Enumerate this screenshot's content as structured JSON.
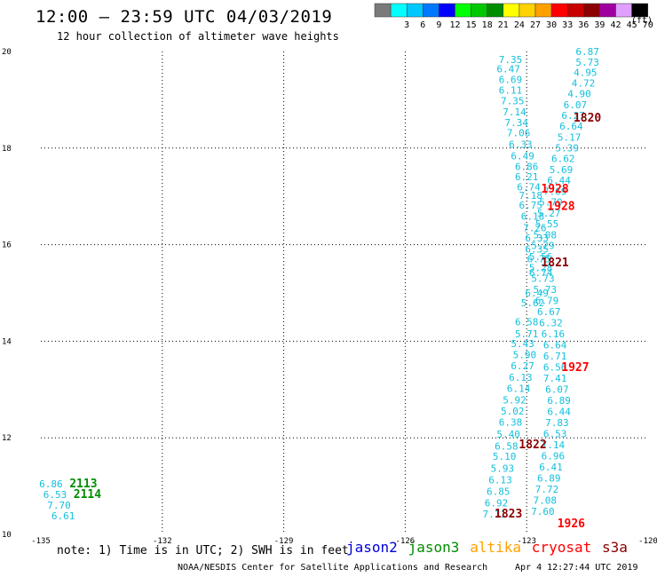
{
  "header": {
    "title": "12:00 – 23:59 UTC 04/03/2019",
    "subtitle": "12 hour collection of altimeter wave heights",
    "legend_units": "(ft)"
  },
  "legend": {
    "bins": [
      {
        "label": "",
        "color": "#7a7a7a"
      },
      {
        "label": "3",
        "color": "#00ffff"
      },
      {
        "label": "6",
        "color": "#00c8ff"
      },
      {
        "label": "9",
        "color": "#0078ff"
      },
      {
        "label": "12",
        "color": "#0000ff"
      },
      {
        "label": "15",
        "color": "#00ff00"
      },
      {
        "label": "18",
        "color": "#00c800"
      },
      {
        "label": "21",
        "color": "#008c00"
      },
      {
        "label": "24",
        "color": "#ffff00"
      },
      {
        "label": "27",
        "color": "#ffd200"
      },
      {
        "label": "30",
        "color": "#ffa000"
      },
      {
        "label": "33",
        "color": "#ff0000"
      },
      {
        "label": "36",
        "color": "#c80000"
      },
      {
        "label": "39",
        "color": "#8c0000"
      },
      {
        "label": "42",
        "color": "#a000a0"
      },
      {
        "label": "45",
        "color": "#e0a0ff"
      },
      {
        "label": "70",
        "color": "#000000"
      }
    ]
  },
  "footer": {
    "note": "note: 1) Time is in UTC; 2) SWH is in feet",
    "satellites": [
      {
        "name": "jason2",
        "color": "#0000dd"
      },
      {
        "name": "jason3",
        "color": "#008c00"
      },
      {
        "name": "altika",
        "color": "#ffa000"
      },
      {
        "name": "cryosat",
        "color": "#ff0000"
      },
      {
        "name": "s3a",
        "color": "#8c0000"
      }
    ],
    "credit": "NOAA/NESDIS Center for Satellite Applications and Research",
    "timestamp": "Apr  4 12:27:44 UTC 2019"
  },
  "chart_data": {
    "type": "scatter",
    "title": "12:00 – 23:59 UTC 04/03/2019",
    "xlim": [
      -135,
      -120
    ],
    "ylim": [
      10,
      20
    ],
    "x_ticks": [
      "-135",
      "-132",
      "-129",
      "-126",
      "-123",
      "-120"
    ],
    "y_ticks": [
      "10",
      "12",
      "14",
      "16",
      "18",
      "20"
    ],
    "grid": true,
    "series": [
      {
        "name": "cyan track",
        "color": "#14c0dc",
        "points": [
          {
            "x": -123.4,
            "y": 19.76,
            "v": "7.35"
          },
          {
            "x": -123.45,
            "y": 19.57,
            "v": "6.47"
          },
          {
            "x": -123.4,
            "y": 19.35,
            "v": "6.69"
          },
          {
            "x": -123.4,
            "y": 19.13,
            "v": "6.11"
          },
          {
            "x": -123.35,
            "y": 18.91,
            "v": "7.35"
          },
          {
            "x": -123.3,
            "y": 18.68,
            "v": "7.14"
          },
          {
            "x": -123.25,
            "y": 18.46,
            "v": "7.34"
          },
          {
            "x": -123.2,
            "y": 18.24,
            "v": "7.06"
          },
          {
            "x": -123.15,
            "y": 18.01,
            "v": "6.33"
          },
          {
            "x": -123.1,
            "y": 17.77,
            "v": "6.49"
          },
          {
            "x": -123.0,
            "y": 17.55,
            "v": "6.86"
          },
          {
            "x": -123.0,
            "y": 17.33,
            "v": "6.21"
          },
          {
            "x": -122.95,
            "y": 17.12,
            "v": "6.74"
          },
          {
            "x": -122.9,
            "y": 16.95,
            "v": "7.18"
          },
          {
            "x": -122.9,
            "y": 16.75,
            "v": "6.75"
          },
          {
            "x": -122.85,
            "y": 16.52,
            "v": "6.18"
          },
          {
            "x": -122.8,
            "y": 16.28,
            "v": "7.26"
          },
          {
            "x": -122.75,
            "y": 16.07,
            "v": "6.33"
          },
          {
            "x": -122.75,
            "y": 15.84,
            "v": "6.35"
          },
          {
            "x": -122.7,
            "y": 15.63,
            "v": "6.75"
          },
          {
            "x": -122.65,
            "y": 15.35,
            "v": "6.74"
          },
          {
            "x": -122.75,
            "y": 14.93,
            "v": "6.49"
          },
          {
            "x": -122.85,
            "y": 14.72,
            "v": "5.62"
          },
          {
            "x": -123.0,
            "y": 14.33,
            "v": "6.58"
          },
          {
            "x": -123.0,
            "y": 14.08,
            "v": "5.71"
          },
          {
            "x": -123.1,
            "y": 13.88,
            "v": "5.43"
          },
          {
            "x": -123.05,
            "y": 13.65,
            "v": "5.90"
          },
          {
            "x": -123.1,
            "y": 13.42,
            "v": "6.27"
          },
          {
            "x": -123.15,
            "y": 13.18,
            "v": "6.13"
          },
          {
            "x": -123.2,
            "y": 12.95,
            "v": "6.14"
          },
          {
            "x": -123.3,
            "y": 12.71,
            "v": "5.92"
          },
          {
            "x": -123.35,
            "y": 12.48,
            "v": "5.02"
          },
          {
            "x": -123.4,
            "y": 12.25,
            "v": "6.38"
          },
          {
            "x": -123.45,
            "y": 12.0,
            "v": "5.40"
          },
          {
            "x": -123.5,
            "y": 11.76,
            "v": "6.58"
          },
          {
            "x": -123.55,
            "y": 11.54,
            "v": "5.10"
          },
          {
            "x": -123.6,
            "y": 11.3,
            "v": "5.93"
          },
          {
            "x": -123.65,
            "y": 11.06,
            "v": "6.13"
          },
          {
            "x": -123.7,
            "y": 10.82,
            "v": "6.85"
          },
          {
            "x": -123.75,
            "y": 10.58,
            "v": "6.92"
          },
          {
            "x": -123.8,
            "y": 10.35,
            "v": "7.11"
          }
        ]
      },
      {
        "name": "cyan track 2",
        "color": "#14c0dc",
        "points": [
          {
            "x": -121.5,
            "y": 19.93,
            "v": "6.87"
          },
          {
            "x": -121.5,
            "y": 19.71,
            "v": "5.73"
          },
          {
            "x": -121.55,
            "y": 19.49,
            "v": "4.95"
          },
          {
            "x": -121.6,
            "y": 19.27,
            "v": "4.72"
          },
          {
            "x": -121.7,
            "y": 19.05,
            "v": "4.90"
          },
          {
            "x": -121.8,
            "y": 18.82,
            "v": "6.07"
          },
          {
            "x": -121.85,
            "y": 18.6,
            "v": "6.27"
          },
          {
            "x": -121.9,
            "y": 18.38,
            "v": "6.64"
          },
          {
            "x": -121.95,
            "y": 18.15,
            "v": "5.17"
          },
          {
            "x": -122.0,
            "y": 17.93,
            "v": "5.39"
          },
          {
            "x": -122.1,
            "y": 17.71,
            "v": "6.62"
          },
          {
            "x": -122.15,
            "y": 17.48,
            "v": "5.69"
          },
          {
            "x": -122.2,
            "y": 17.26,
            "v": "6.44"
          },
          {
            "x": -122.3,
            "y": 17.03,
            "v": "7.69"
          },
          {
            "x": -122.4,
            "y": 16.81,
            "v": "5.79"
          },
          {
            "x": -122.45,
            "y": 16.58,
            "v": "5.27"
          },
          {
            "x": -122.5,
            "y": 16.36,
            "v": "5.55"
          },
          {
            "x": -122.55,
            "y": 16.13,
            "v": "5.08"
          },
          {
            "x": -122.6,
            "y": 15.91,
            "v": "5.29"
          },
          {
            "x": -122.65,
            "y": 15.68,
            "v": "5.56"
          },
          {
            "x": -122.65,
            "y": 15.45,
            "v": "5.28"
          },
          {
            "x": -122.6,
            "y": 15.23,
            "v": "5.73"
          },
          {
            "x": -122.55,
            "y": 15.0,
            "v": "5.73"
          },
          {
            "x": -122.5,
            "y": 14.77,
            "v": "6.79"
          },
          {
            "x": -122.45,
            "y": 14.54,
            "v": "6.67"
          },
          {
            "x": -122.4,
            "y": 14.31,
            "v": "6.32"
          },
          {
            "x": -122.35,
            "y": 14.08,
            "v": "6.16"
          },
          {
            "x": -122.3,
            "y": 13.85,
            "v": "6.64"
          },
          {
            "x": -122.3,
            "y": 13.62,
            "v": "6.71"
          },
          {
            "x": -122.3,
            "y": 13.39,
            "v": "6.56"
          },
          {
            "x": -122.3,
            "y": 13.16,
            "v": "7.41"
          },
          {
            "x": -122.25,
            "y": 12.93,
            "v": "6.07"
          },
          {
            "x": -122.2,
            "y": 12.7,
            "v": "6.89"
          },
          {
            "x": -122.2,
            "y": 12.47,
            "v": "6.44"
          },
          {
            "x": -122.25,
            "y": 12.24,
            "v": "7.83"
          },
          {
            "x": -122.3,
            "y": 12.01,
            "v": "6.53"
          },
          {
            "x": -122.35,
            "y": 11.78,
            "v": "7.14"
          },
          {
            "x": -122.35,
            "y": 11.55,
            "v": "6.96"
          },
          {
            "x": -122.4,
            "y": 11.32,
            "v": "6.41"
          },
          {
            "x": -122.45,
            "y": 11.09,
            "v": "6.89"
          },
          {
            "x": -122.5,
            "y": 10.86,
            "v": "7.72"
          },
          {
            "x": -122.55,
            "y": 10.63,
            "v": "7.08"
          },
          {
            "x": -122.6,
            "y": 10.4,
            "v": "7.60"
          }
        ]
      },
      {
        "name": "left cyan",
        "color": "#14c0dc",
        "points": [
          {
            "x": -134.75,
            "y": 10.97,
            "v": "6.86"
          },
          {
            "x": -134.65,
            "y": 10.75,
            "v": "6.53"
          },
          {
            "x": -134.55,
            "y": 10.53,
            "v": "7.70"
          },
          {
            "x": -134.45,
            "y": 10.31,
            "v": "6.61"
          }
        ]
      }
    ],
    "time_labels": [
      {
        "x": -121.5,
        "y": 18.55,
        "t": "1820",
        "color": "#8c0000"
      },
      {
        "x": -122.3,
        "y": 17.08,
        "t": "1928",
        "color": "#ff0000"
      },
      {
        "x": -122.15,
        "y": 16.72,
        "t": "1928",
        "color": "#ff0000"
      },
      {
        "x": -122.3,
        "y": 15.55,
        "t": "1821",
        "color": "#8c0000"
      },
      {
        "x": -121.8,
        "y": 13.38,
        "t": "1927",
        "color": "#ff0000"
      },
      {
        "x": -122.85,
        "y": 11.78,
        "t": "1822",
        "color": "#8c0000"
      },
      {
        "x": -123.45,
        "y": 10.35,
        "t": "1823",
        "color": "#8c0000"
      },
      {
        "x": -121.9,
        "y": 10.15,
        "t": "1926",
        "color": "#ff0000"
      },
      {
        "x": -133.95,
        "y": 10.97,
        "t": "2113",
        "color": "#008c00"
      },
      {
        "x": -133.85,
        "y": 10.75,
        "t": "2114",
        "color": "#008c00"
      }
    ]
  }
}
